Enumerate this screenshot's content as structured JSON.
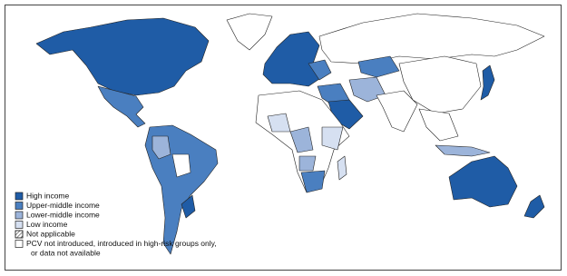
{
  "legend": {
    "items": [
      {
        "lines": [
          "High income"
        ],
        "color": "#1f5ca6"
      },
      {
        "lines": [
          "Upper-middle income"
        ],
        "color": "#4a7fc0"
      },
      {
        "lines": [
          "Lower-middle income"
        ],
        "color": "#9cb4da"
      },
      {
        "lines": [
          "Low income"
        ],
        "color": "#d6e0f1"
      },
      {
        "lines": [
          "Not applicable"
        ],
        "color": "#ffffff",
        "hatch": true
      },
      {
        "lines": [
          "PCV not introduced, introduced in high-risk groups only,",
          "or data not available"
        ],
        "color": "#ffffff"
      }
    ]
  }
}
